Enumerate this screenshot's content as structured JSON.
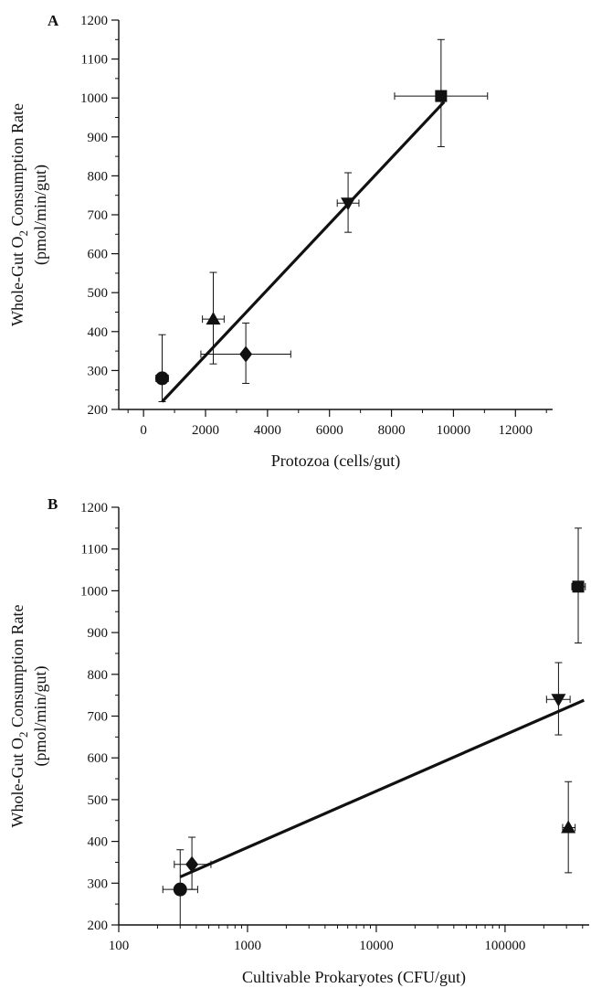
{
  "chart_data": [
    {
      "panel": "A",
      "type": "scatter",
      "title": "",
      "xlabel": "Protozoa (cells/gut)",
      "ylabel_line1": "Whole-Gut O",
      "ylabel_sub": "2",
      "ylabel_line1_rest": " Consumption Rate",
      "ylabel_line2": "(pmol/min/gut)",
      "xlim": [
        -800,
        13200
      ],
      "ylim": [
        200,
        1200
      ],
      "xticks": [
        0,
        2000,
        4000,
        6000,
        8000,
        10000,
        12000
      ],
      "xtick_labels": [
        "0",
        "2000",
        "4000",
        "6000",
        "8000",
        "10000",
        "12000"
      ],
      "yticks": [
        200,
        300,
        400,
        500,
        600,
        700,
        800,
        900,
        1000,
        1100,
        1200
      ],
      "ytick_labels": [
        "200",
        "300",
        "400",
        "500",
        "600",
        "700",
        "800",
        "900",
        "1000",
        "1100",
        "1200"
      ],
      "points": [
        {
          "marker": "circle",
          "x": 600,
          "y": 280,
          "xerr_lo": 200,
          "xerr_hi": 200,
          "yerr_lo": 60,
          "yerr_hi": 112
        },
        {
          "marker": "triangle-up",
          "x": 2250,
          "y": 432,
          "xerr_lo": 350,
          "xerr_hi": 350,
          "yerr_lo": 115,
          "yerr_hi": 120
        },
        {
          "marker": "diamond",
          "x": 3300,
          "y": 342,
          "xerr_lo": 1450,
          "xerr_hi": 1450,
          "yerr_lo": 75,
          "yerr_hi": 80
        },
        {
          "marker": "triangle-down",
          "x": 6600,
          "y": 730,
          "xerr_lo": 350,
          "xerr_hi": 350,
          "yerr_lo": 75,
          "yerr_hi": 78
        },
        {
          "marker": "square",
          "x": 9600,
          "y": 1005,
          "xerr_lo": 1500,
          "xerr_hi": 1500,
          "yerr_lo": 130,
          "yerr_hi": 145
        }
      ],
      "fit_line": {
        "x": [
          600,
          9700
        ],
        "y": [
          220,
          990
        ]
      }
    },
    {
      "panel": "B",
      "type": "scatter",
      "title": "",
      "xlabel": "Cultivable Prokaryotes (CFU/gut)",
      "ylabel_line1": "Whole-Gut O",
      "ylabel_sub": "2",
      "ylabel_line1_rest": " Consumption Rate",
      "ylabel_line2": "(pmol/min/gut)",
      "xscale": "log",
      "xlim": [
        100,
        450000
      ],
      "ylim": [
        200,
        1200
      ],
      "xticks": [
        100,
        1000,
        10000,
        100000
      ],
      "xtick_labels": [
        "100",
        "1000",
        "10000",
        "100000"
      ],
      "yticks": [
        200,
        300,
        400,
        500,
        600,
        700,
        800,
        900,
        1000,
        1100,
        1200
      ],
      "ytick_labels": [
        "200",
        "300",
        "400",
        "500",
        "600",
        "700",
        "800",
        "900",
        "1000",
        "1100",
        "1200"
      ],
      "points": [
        {
          "marker": "circle",
          "x": 300,
          "y": 285,
          "xerr_lo": 80,
          "xerr_hi": 110,
          "yerr_lo": 85,
          "yerr_hi": 95
        },
        {
          "marker": "diamond",
          "x": 370,
          "y": 345,
          "xerr_lo": 100,
          "xerr_hi": 150,
          "yerr_lo": 60,
          "yerr_hi": 65
        },
        {
          "marker": "triangle-down",
          "x": 260000,
          "y": 740,
          "xerr_lo": 50000,
          "xerr_hi": 60000,
          "yerr_lo": 85,
          "yerr_hi": 88
        },
        {
          "marker": "triangle-up",
          "x": 310000,
          "y": 433,
          "xerr_lo": 30000,
          "xerr_hi": 40000,
          "yerr_lo": 108,
          "yerr_hi": 110
        },
        {
          "marker": "square",
          "x": 370000,
          "y": 1010,
          "xerr_lo": 40000,
          "xerr_hi": 50000,
          "yerr_lo": 135,
          "yerr_hi": 140
        }
      ],
      "fit_line": {
        "x": [
          300,
          410000
        ],
        "y": [
          315,
          738
        ]
      }
    }
  ]
}
